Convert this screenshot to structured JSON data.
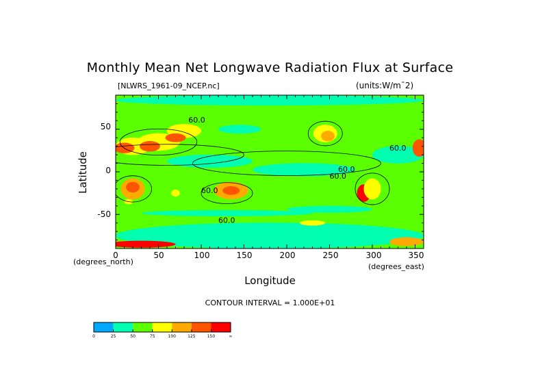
{
  "chart_data": {
    "type": "heatmap",
    "subtype": "filled-contour-map",
    "title": "Monthly Mean Net Longwave Radiation Flux at Surface",
    "subtitle": "[NLWRS_1961-09_NCEP.nc]",
    "units": "(units:W/m¯2)",
    "xlabel": "Longitude",
    "ylabel": "Latitude",
    "x_unit_note": "(degrees_east)",
    "y_unit_note": "(degrees_north)",
    "xlim": [
      0,
      360
    ],
    "ylim": [
      -90,
      90
    ],
    "x_ticks": [
      "0",
      "50",
      "100",
      "150",
      "200",
      "250",
      "300",
      "350"
    ],
    "y_ticks": [
      "50",
      "0",
      "-50"
    ],
    "contour_interval_text": "CONTOUR INTERVAL = 1.000E+01",
    "contour_label": "60.0",
    "colorbar": {
      "labels": [
        "0",
        "25",
        "50",
        "75",
        "100",
        "125",
        "150",
        "∞"
      ],
      "colors": [
        "#00a8ff",
        "#00ffb0",
        "#5aff00",
        "#ffff00",
        "#ffaa00",
        "#ff5500",
        "#ff0000"
      ]
    }
  }
}
